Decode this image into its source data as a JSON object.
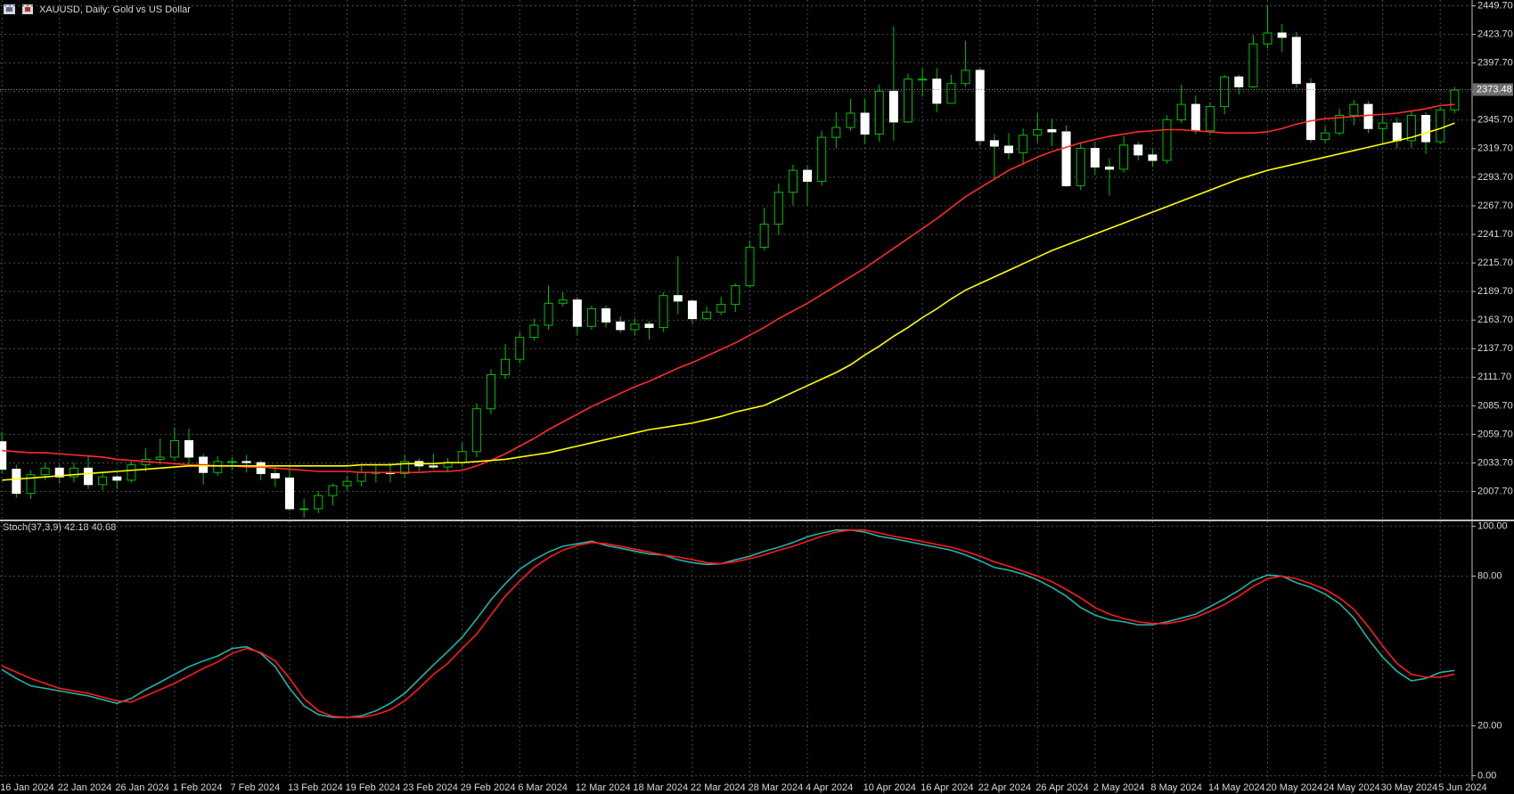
{
  "chart_data": [
    {
      "type": "candlestick",
      "title": "XAUUSD, Daily:  Gold vs US Dollar",
      "ylim": [
        1982.2,
        2455
      ],
      "yticks": [
        {
          "value": 2007.7,
          "label": "2007.70"
        },
        {
          "value": 2033.7,
          "label": "2033.70"
        },
        {
          "value": 2059.7,
          "label": "2059.70"
        },
        {
          "value": 2085.7,
          "label": "2085.70"
        },
        {
          "value": 2111.7,
          "label": "2111.70"
        },
        {
          "value": 2137.7,
          "label": "2137.70"
        },
        {
          "value": 2163.7,
          "label": "2163.70"
        },
        {
          "value": 2189.7,
          "label": "2189.70"
        },
        {
          "value": 2215.7,
          "label": "2215.70"
        },
        {
          "value": 2241.7,
          "label": "2241.70"
        },
        {
          "value": 2267.7,
          "label": "2267.70"
        },
        {
          "value": 2293.7,
          "label": "2293.70"
        },
        {
          "value": 2319.7,
          "label": "2319.70"
        },
        {
          "value": 2345.7,
          "label": "2345.70"
        },
        {
          "value": 2371.7,
          "label": "2371.70"
        },
        {
          "value": 2397.7,
          "label": "2397.70"
        },
        {
          "value": 2423.7,
          "label": "2423.70"
        },
        {
          "value": 2449.7,
          "label": "2449.70"
        }
      ],
      "grid": true,
      "up_color": "#000000",
      "down_color": "#ffffff",
      "wick_color": "#00c000",
      "last_price": 2373.48,
      "open": [
        2053,
        2028,
        2006,
        2023,
        2029,
        2021,
        2029,
        2014,
        2021,
        2018,
        2032,
        2037,
        2039,
        2054,
        2039,
        2025,
        2035,
        2035,
        2034,
        2024,
        2020,
        1992,
        1992,
        2004,
        2013,
        2017,
        2025,
        2025,
        2024,
        2035,
        2031,
        2030,
        2034,
        2044,
        2083,
        2114,
        2128,
        2148,
        2159,
        2179,
        2182,
        2158,
        2174,
        2162,
        2155,
        2160,
        2157,
        2186,
        2181,
        2165,
        2171,
        2178,
        2195,
        2230,
        2251,
        2280,
        2300,
        2290,
        2330,
        2339,
        2352,
        2333,
        2372,
        2344,
        2383,
        2383,
        2361,
        2379,
        2391,
        2327,
        2322,
        2316,
        2332,
        2337,
        2335,
        2286,
        2320,
        2303,
        2301,
        2323,
        2314,
        2309,
        2346,
        2360,
        2336,
        2358,
        2385,
        2376,
        2415,
        2425,
        2421,
        2379,
        2328,
        2334,
        2350,
        2360,
        2338,
        2343,
        2327,
        2350,
        2326,
        2355
      ],
      "high": [
        2062,
        2032,
        2027,
        2034,
        2032,
        2034,
        2041,
        2025,
        2023,
        2035,
        2047,
        2056,
        2066,
        2065,
        2042,
        2040,
        2039,
        2041,
        2036,
        2030,
        2031,
        2001,
        2008,
        2015,
        2022,
        2031,
        2031,
        2034,
        2041,
        2038,
        2042,
        2038,
        2052,
        2088,
        2119,
        2142,
        2153,
        2165,
        2195,
        2189,
        2185,
        2177,
        2177,
        2167,
        2165,
        2163,
        2189,
        2222,
        2182,
        2176,
        2185,
        2197,
        2236,
        2266,
        2288,
        2305,
        2305,
        2336,
        2353,
        2365,
        2365,
        2378,
        2431,
        2388,
        2393,
        2393,
        2387,
        2418,
        2393,
        2333,
        2334,
        2338,
        2352,
        2347,
        2341,
        2325,
        2326,
        2311,
        2331,
        2326,
        2320,
        2350,
        2378,
        2368,
        2362,
        2387,
        2387,
        2423,
        2450,
        2433,
        2426,
        2384,
        2340,
        2356,
        2364,
        2363,
        2350,
        2348,
        2354,
        2353,
        2358,
        2376
      ],
      "low": [
        2024,
        2002,
        2001,
        2018,
        2015,
        2016,
        2010,
        2009,
        2010,
        2016,
        2026,
        2032,
        2036,
        2031,
        2014,
        2022,
        2027,
        2025,
        2018,
        2012,
        1990,
        1984,
        1988,
        1995,
        2009,
        2012,
        2016,
        2016,
        2020,
        2026,
        2028,
        2025,
        2030,
        2039,
        2078,
        2110,
        2124,
        2145,
        2155,
        2176,
        2150,
        2155,
        2157,
        2152,
        2150,
        2146,
        2153,
        2169,
        2160,
        2164,
        2168,
        2171,
        2193,
        2227,
        2241,
        2268,
        2268,
        2286,
        2320,
        2336,
        2324,
        2326,
        2327,
        2343,
        2367,
        2353,
        2362,
        2376,
        2322,
        2291,
        2310,
        2305,
        2325,
        2322,
        2285,
        2282,
        2296,
        2277,
        2298,
        2309,
        2303,
        2306,
        2343,
        2333,
        2333,
        2351,
        2369,
        2375,
        2411,
        2408,
        2375,
        2325,
        2325,
        2332,
        2341,
        2334,
        2323,
        2320,
        2320,
        2315,
        2324,
        2352
      ],
      "close": [
        2028,
        2006,
        2023,
        2029,
        2021,
        2029,
        2014,
        2021,
        2018,
        2032,
        2037,
        2039,
        2054,
        2039,
        2025,
        2035,
        2035,
        2034,
        2024,
        2020,
        1992,
        1992,
        2004,
        2013,
        2017,
        2025,
        2025,
        2024,
        2035,
        2031,
        2030,
        2034,
        2044,
        2083,
        2114,
        2128,
        2148,
        2159,
        2179,
        2182,
        2158,
        2174,
        2162,
        2155,
        2160,
        2157,
        2186,
        2181,
        2165,
        2171,
        2178,
        2195,
        2230,
        2251,
        2280,
        2300,
        2290,
        2330,
        2339,
        2352,
        2333,
        2372,
        2344,
        2383,
        2383,
        2361,
        2379,
        2391,
        2327,
        2322,
        2316,
        2332,
        2337,
        2335,
        2286,
        2320,
        2303,
        2301,
        2323,
        2314,
        2309,
        2346,
        2360,
        2336,
        2358,
        2385,
        2376,
        2415,
        2425,
        2421,
        2379,
        2328,
        2334,
        2350,
        2360,
        2338,
        2343,
        2327,
        2350,
        2326,
        2355,
        2373
      ],
      "series": [
        {
          "color": "#ff2a2a",
          "values": [
            2045,
            2044,
            2043,
            2043,
            2042,
            2041,
            2040,
            2039,
            2037,
            2036,
            2035,
            2034,
            2033,
            2032,
            2032,
            2031,
            2031,
            2030,
            2030,
            2029,
            2028,
            2027,
            2026,
            2026,
            2026,
            2025,
            2025,
            2025,
            2025,
            2025,
            2026,
            2026,
            2027,
            2031,
            2036,
            2042,
            2049,
            2056,
            2064,
            2071,
            2078,
            2085,
            2091,
            2097,
            2103,
            2108,
            2114,
            2120,
            2125,
            2131,
            2137,
            2143,
            2150,
            2157,
            2165,
            2172,
            2179,
            2187,
            2195,
            2203,
            2211,
            2220,
            2229,
            2238,
            2247,
            2256,
            2266,
            2276,
            2284,
            2292,
            2300,
            2306,
            2312,
            2317,
            2321,
            2325,
            2328,
            2331,
            2333,
            2335,
            2336,
            2337,
            2337,
            2336,
            2335,
            2334,
            2334,
            2334,
            2335,
            2338,
            2342,
            2345,
            2347,
            2348,
            2349,
            2350,
            2351,
            2352,
            2354,
            2356,
            2359,
            2360
          ]
        },
        {
          "color": "#ffff00",
          "values": [
            2018,
            2019,
            2020,
            2021,
            2022,
            2023,
            2024,
            2025,
            2026,
            2027,
            2028,
            2029,
            2030,
            2031,
            2031,
            2031,
            2031,
            2031,
            2031,
            2031,
            2031,
            2031,
            2031,
            2031,
            2031,
            2032,
            2032,
            2032,
            2033,
            2033,
            2033,
            2034,
            2034,
            2035,
            2036,
            2037,
            2039,
            2041,
            2043,
            2046,
            2049,
            2052,
            2055,
            2058,
            2061,
            2064,
            2066,
            2068,
            2070,
            2073,
            2076,
            2080,
            2083,
            2086,
            2092,
            2098,
            2104,
            2110,
            2116,
            2123,
            2132,
            2140,
            2149,
            2157,
            2166,
            2174,
            2183,
            2191,
            2197,
            2203,
            2209,
            2215,
            2221,
            2227,
            2232,
            2237,
            2242,
            2247,
            2252,
            2257,
            2262,
            2267,
            2272,
            2277,
            2282,
            2287,
            2292,
            2296,
            2300,
            2303,
            2306,
            2309,
            2312,
            2315,
            2318,
            2321,
            2324,
            2327,
            2330,
            2334,
            2338,
            2343
          ]
        }
      ]
    },
    {
      "type": "line",
      "title": "Stoch(37,3,9) 42.18 40.68",
      "ylim": [
        -2,
        102
      ],
      "yticks": [
        {
          "value": 0,
          "label": "0.00"
        },
        {
          "value": 20,
          "label": "20.00"
        },
        {
          "value": 80,
          "label": "80.00"
        },
        {
          "value": 100,
          "label": "100.00"
        }
      ],
      "grid": true,
      "categories": [
        "16 Jan 2024",
        null,
        null,
        null,
        "22 Jan 2024",
        null,
        null,
        null,
        "26 Jan 2024",
        null,
        null,
        null,
        "1 Feb 2024",
        null,
        null,
        null,
        "7 Feb 2024",
        null,
        null,
        null,
        "13 Feb 2024",
        null,
        null,
        null,
        "19 Feb 2024",
        null,
        null,
        null,
        "23 Feb 2024",
        null,
        null,
        null,
        "29 Feb 2024",
        null,
        null,
        null,
        "6 Mar 2024",
        null,
        null,
        null,
        "12 Mar 2024",
        null,
        null,
        null,
        "18 Mar 2024",
        null,
        null,
        null,
        "22 Mar 2024",
        null,
        null,
        null,
        "28 Mar 2024",
        null,
        null,
        null,
        "4 Apr 2024",
        null,
        null,
        null,
        "10 Apr 2024",
        null,
        null,
        null,
        "16 Apr 2024",
        null,
        null,
        null,
        "22 Apr 2024",
        null,
        null,
        null,
        "26 Apr 2024",
        null,
        null,
        null,
        "2 May 2024",
        null,
        null,
        null,
        "8 May 2024",
        null,
        null,
        null,
        "14 May 2024",
        null,
        null,
        null,
        "20 May 2024",
        null,
        null,
        null,
        "24 May 2024",
        null,
        null,
        null,
        "30 May 2024",
        null,
        null,
        null,
        "5 Jun 2024",
        null
      ],
      "series": [
        {
          "color": "#20b2aa",
          "values": [
            42.5,
            39,
            36,
            35,
            34,
            33,
            32,
            30.5,
            29,
            31,
            34.5,
            37.5,
            40.6,
            43.7,
            46,
            48,
            51,
            51.7,
            49,
            43.7,
            35,
            28,
            24.5,
            23.4,
            23.4,
            24,
            26,
            29,
            33,
            38.7,
            44.4,
            49.8,
            55.5,
            62.8,
            70.5,
            77,
            82.8,
            86.6,
            89.7,
            92,
            93,
            94,
            92.3,
            91.2,
            90,
            88.9,
            88.5,
            86.6,
            85.4,
            84.7,
            85,
            86.6,
            88,
            90,
            91.6,
            93.5,
            95.8,
            97.3,
            98.5,
            98.5,
            97.7,
            96,
            95,
            93.9,
            92.7,
            91.6,
            90.4,
            88.5,
            86.2,
            83.5,
            82.4,
            80.8,
            78.5,
            75.5,
            72,
            67.4,
            64.4,
            62.5,
            61.7,
            60.5,
            60.5,
            61.7,
            63.2,
            64.8,
            67.8,
            70.9,
            74.3,
            78.2,
            80.5,
            80,
            77.4,
            75.5,
            72.8,
            69,
            63.2,
            54.8,
            47.5,
            41.8,
            38,
            39,
            41.4,
            42.18
          ]
        },
        {
          "color": "#ff1a1a",
          "values": [
            44,
            41.5,
            39,
            37,
            35,
            34,
            33,
            31.5,
            30,
            29.5,
            32,
            34.5,
            37,
            40,
            43,
            45.6,
            49,
            51,
            49.4,
            46,
            39,
            31,
            26,
            23.8,
            23.4,
            23.4,
            24.5,
            26.4,
            30,
            35,
            40.6,
            45,
            51,
            56.7,
            64.4,
            72,
            78,
            83.5,
            87.4,
            90.4,
            92.3,
            93.5,
            93,
            92,
            90.8,
            89.7,
            88.5,
            87.7,
            86.6,
            85.4,
            85,
            85.8,
            87,
            88.5,
            90.4,
            92,
            94,
            96,
            97.7,
            98.5,
            98.5,
            97.3,
            96,
            95,
            93.9,
            92.7,
            91.6,
            90,
            88,
            85.8,
            84,
            82,
            80,
            77.8,
            74.7,
            71.3,
            67.4,
            64.8,
            63,
            61.7,
            61,
            61,
            62,
            63.6,
            65.9,
            68.6,
            72,
            75.9,
            79,
            80,
            79,
            77,
            74.7,
            71.3,
            66.7,
            59.8,
            52,
            45,
            40.6,
            39.5,
            39.5,
            40.68
          ]
        }
      ]
    }
  ]
}
